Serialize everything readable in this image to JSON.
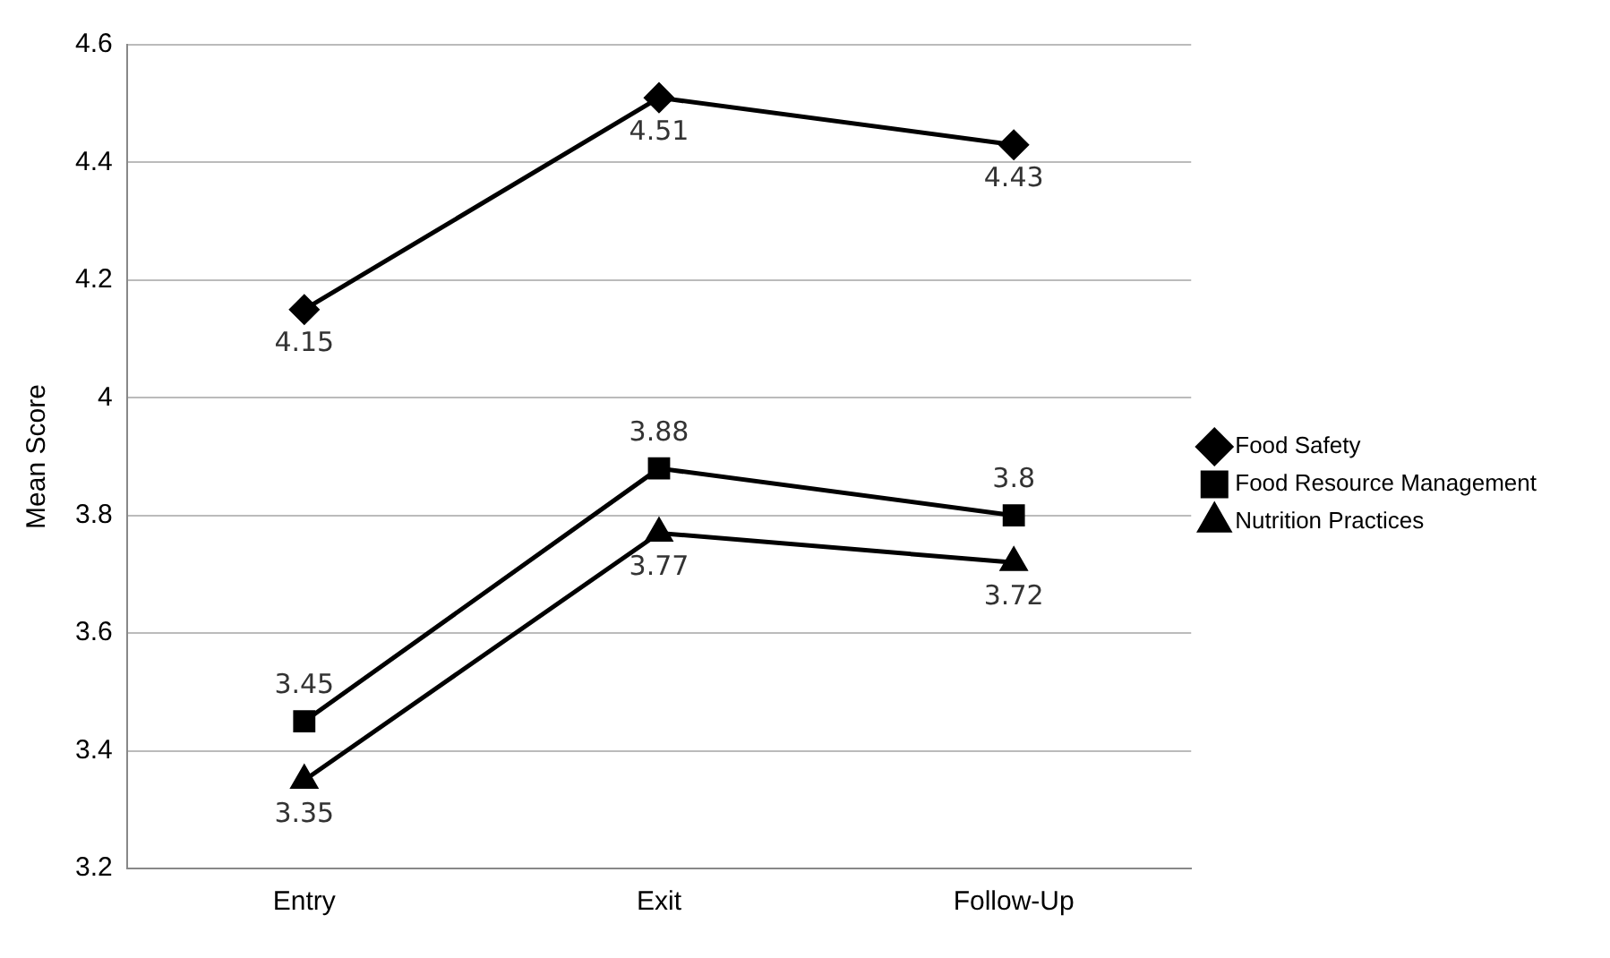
{
  "chart_data": {
    "type": "line",
    "ylabel": "Mean Score",
    "categories": [
      "Entry",
      "Exit",
      "Follow-Up"
    ],
    "series": [
      {
        "name": "Food Safety",
        "color": "#000000",
        "marker": "diamond",
        "values": [
          4.15,
          4.51,
          4.43
        ]
      },
      {
        "name": "Food Resource Management",
        "color": "#000000",
        "marker": "square",
        "values": [
          3.45,
          3.88,
          3.8
        ]
      },
      {
        "name": "Nutrition Practices",
        "color": "#000000",
        "marker": "triangle",
        "values": [
          3.35,
          3.77,
          3.72
        ]
      }
    ],
    "ylim": [
      3.2,
      4.6
    ],
    "yticks": [
      3.2,
      3.4,
      3.6,
      3.8,
      4,
      4.2,
      4.4,
      4.6
    ],
    "grid": "y",
    "legend": "right",
    "data_labels": true,
    "line_style": "solid"
  }
}
